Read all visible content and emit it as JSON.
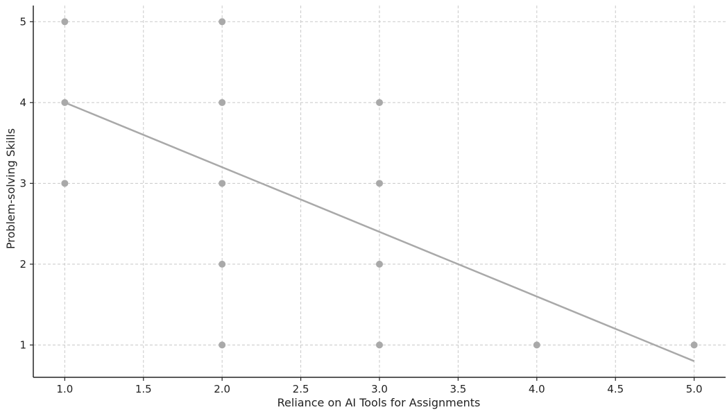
{
  "chart_data": {
    "type": "scatter",
    "title": "",
    "xlabel": "Reliance on AI Tools for Assignments",
    "ylabel": "Problem-solving Skills",
    "xlim": [
      0.8,
      5.2
    ],
    "ylim": [
      0.6,
      5.2
    ],
    "xticks": [
      "1.0",
      "1.5",
      "2.0",
      "2.5",
      "3.0",
      "3.5",
      "4.0",
      "4.5",
      "5.0"
    ],
    "yticks": [
      "1",
      "2",
      "3",
      "4",
      "5"
    ],
    "grid": true,
    "points": [
      {
        "x": 1,
        "y": 5
      },
      {
        "x": 1,
        "y": 4
      },
      {
        "x": 1,
        "y": 3
      },
      {
        "x": 2,
        "y": 5
      },
      {
        "x": 2,
        "y": 4
      },
      {
        "x": 2,
        "y": 3
      },
      {
        "x": 2,
        "y": 2
      },
      {
        "x": 2,
        "y": 1
      },
      {
        "x": 3,
        "y": 4
      },
      {
        "x": 3,
        "y": 3
      },
      {
        "x": 3,
        "y": 2
      },
      {
        "x": 3,
        "y": 1
      },
      {
        "x": 4,
        "y": 1
      },
      {
        "x": 5,
        "y": 1
      }
    ],
    "trendline": {
      "x": [
        1,
        5
      ],
      "y": [
        4.0,
        0.8
      ]
    },
    "colors": {
      "points": "#a9a9a9",
      "trendline": "#a9a9a9"
    }
  }
}
